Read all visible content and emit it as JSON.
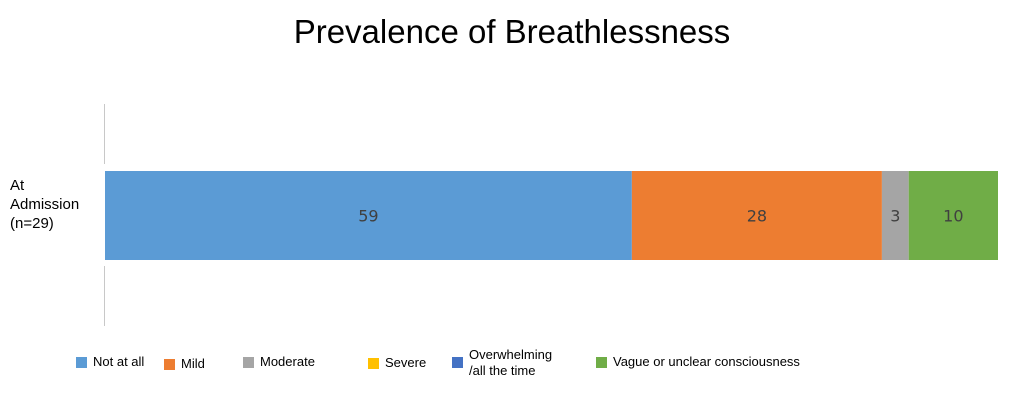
{
  "chart_data": {
    "type": "bar",
    "orientation": "horizontal",
    "stacked": true,
    "title": "Prevalence of Breathlessness",
    "categories": [
      "At\nAdmission\n(n=29)"
    ],
    "xlim": [
      0,
      100
    ],
    "grid": false,
    "legend_position": "bottom",
    "series": [
      {
        "name": "Not at all",
        "values": [
          59
        ],
        "color": "#5B9BD5"
      },
      {
        "name": "Mild",
        "values": [
          28
        ],
        "color": "#ED7D31"
      },
      {
        "name": "Moderate",
        "values": [
          3
        ],
        "color": "#A5A5A5"
      },
      {
        "name": "Severe",
        "values": [
          0
        ],
        "color": "#FFC000"
      },
      {
        "name": "Overwhelming\n/all the time",
        "values": [
          0
        ],
        "color": "#4472C4"
      },
      {
        "name": "Vague or unclear consciousness",
        "values": [
          10
        ],
        "color": "#70AD47"
      }
    ]
  }
}
